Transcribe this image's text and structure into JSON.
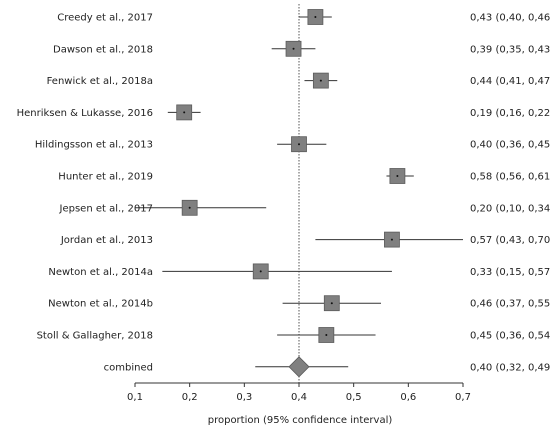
{
  "chart_data": {
    "type": "forest",
    "xlabel": "proportion (95% confidence interval)",
    "xlim": [
      0.1,
      0.7
    ],
    "ticks": [
      0.1,
      0.2,
      0.3,
      0.4,
      0.5,
      0.6,
      0.7
    ],
    "tick_labels": [
      "0,1",
      "0,2",
      "0,3",
      "0,4",
      "0,5",
      "0,6",
      "0,7"
    ],
    "reference_line": 0.4,
    "colors": {
      "marker": "#808080",
      "marker_edge": "#5a5a5a",
      "line": "#333333"
    },
    "studies": [
      {
        "label": "Creedy et al., 2017",
        "estimate": 0.43,
        "lower": 0.4,
        "upper": 0.46,
        "ci_text": "0,43 (0,40, 0,46)"
      },
      {
        "label": "Dawson et al., 2018",
        "estimate": 0.39,
        "lower": 0.35,
        "upper": 0.43,
        "ci_text": "0,39 (0,35, 0,43)"
      },
      {
        "label": "Fenwick et al., 2018a",
        "estimate": 0.44,
        "lower": 0.41,
        "upper": 0.47,
        "ci_text": "0,44 (0,41, 0,47)"
      },
      {
        "label": "Henriksen & Lukasse, 2016",
        "estimate": 0.19,
        "lower": 0.16,
        "upper": 0.22,
        "ci_text": "0,19 (0,16, 0,22)"
      },
      {
        "label": "Hildingsson et al., 2013",
        "estimate": 0.4,
        "lower": 0.36,
        "upper": 0.45,
        "ci_text": "0,40 (0,36, 0,45)"
      },
      {
        "label": "Hunter et al., 2019",
        "estimate": 0.58,
        "lower": 0.56,
        "upper": 0.61,
        "ci_text": "0,58 (0,56, 0,61)"
      },
      {
        "label": "Jepsen et al., 2017",
        "estimate": 0.2,
        "lower": 0.1,
        "upper": 0.34,
        "ci_text": "0,20 (0,10, 0,34)"
      },
      {
        "label": "Jordan et al., 2013",
        "estimate": 0.57,
        "lower": 0.43,
        "upper": 0.7,
        "ci_text": "0,57 (0,43, 0,70)"
      },
      {
        "label": "Newton et al., 2014a",
        "estimate": 0.33,
        "lower": 0.15,
        "upper": 0.57,
        "ci_text": "0,33 (0,15, 0,57)"
      },
      {
        "label": "Newton et al., 2014b",
        "estimate": 0.46,
        "lower": 0.37,
        "upper": 0.55,
        "ci_text": "0,46 (0,37, 0,55)"
      },
      {
        "label": "Stoll & Gallagher, 2018",
        "estimate": 0.45,
        "lower": 0.36,
        "upper": 0.54,
        "ci_text": "0,45 (0,36, 0,54)"
      }
    ],
    "combined": {
      "label": "combined",
      "estimate": 0.4,
      "lower": 0.32,
      "upper": 0.49,
      "ci_text": "0,40 (0,32, 0,49)"
    }
  }
}
